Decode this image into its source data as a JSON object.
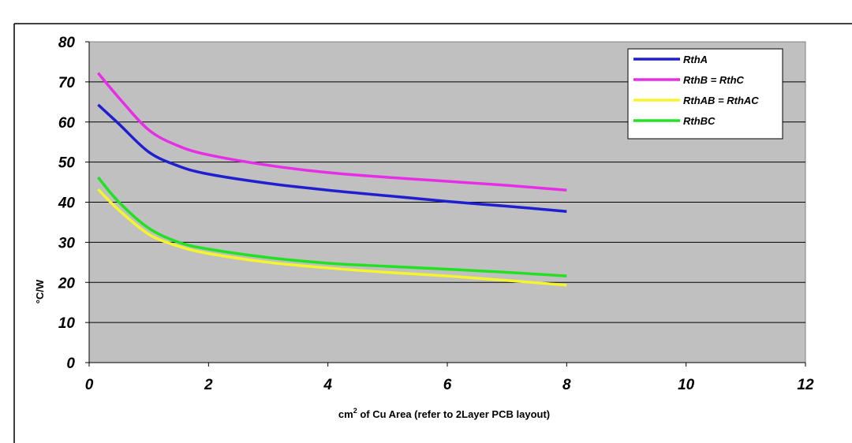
{
  "chart_data": {
    "type": "line",
    "title": "",
    "xlabel_prefix": "cm",
    "xlabel_sup": "2",
    "xlabel_rest": " of Cu Area (refer to 2Layer PCB layout)",
    "ylabel": "°C/W",
    "xlim": [
      0,
      12
    ],
    "ylim": [
      0,
      80
    ],
    "xticks": [
      0,
      2,
      4,
      6,
      8,
      10,
      12
    ],
    "yticks": [
      0,
      10,
      20,
      30,
      40,
      50,
      60,
      70,
      80
    ],
    "grid": "horizontal",
    "plot_background": "#c0c0c0",
    "legend_position": "top-right",
    "series": [
      {
        "name": "RthA",
        "color": "#1f1fcf",
        "x": [
          0.15,
          0.5,
          1.0,
          1.5,
          2.0,
          3.0,
          4.0,
          5.0,
          6.0,
          7.0,
          8.0
        ],
        "y": [
          64.3,
          59.5,
          52.5,
          49.0,
          47.0,
          44.7,
          43.0,
          41.6,
          40.2,
          39.0,
          37.7
        ]
      },
      {
        "name": "RthB = RthC",
        "color": "#e62ee6",
        "x": [
          0.15,
          0.5,
          1.0,
          1.5,
          2.0,
          3.0,
          4.0,
          5.0,
          6.0,
          7.0,
          8.0
        ],
        "y": [
          72.2,
          66.0,
          58.0,
          54.0,
          51.8,
          49.2,
          47.4,
          46.2,
          45.2,
          44.2,
          43.0
        ]
      },
      {
        "name": "RthAB = RthAC",
        "color": "#f5f52e",
        "x": [
          0.15,
          0.5,
          1.0,
          1.5,
          2.0,
          3.0,
          4.0,
          5.0,
          6.0,
          7.0,
          8.0
        ],
        "y": [
          43.2,
          38.0,
          32.0,
          29.0,
          27.2,
          25.0,
          23.6,
          22.5,
          21.6,
          20.5,
          19.3
        ]
      },
      {
        "name": "RthBC",
        "color": "#22e022",
        "x": [
          0.15,
          0.5,
          1.0,
          1.5,
          2.0,
          3.0,
          4.0,
          5.0,
          6.0,
          7.0,
          8.0
        ],
        "y": [
          46.2,
          40.0,
          33.5,
          30.0,
          28.3,
          26.2,
          24.8,
          24.0,
          23.3,
          22.5,
          21.6
        ]
      }
    ]
  }
}
